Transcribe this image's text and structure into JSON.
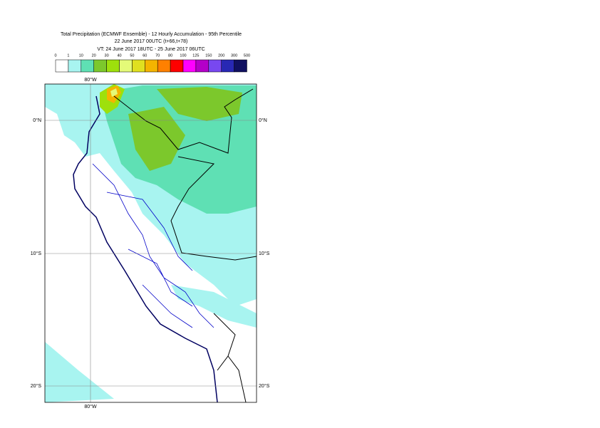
{
  "header": {
    "lines": [
      "Total Precipitation (ECMWF Ensemble) - 12 Hourly Accumulation - 95th Percentile",
      "22 June 2017 00UTC (t+66,t+78)",
      "VT: 24 June 2017 18UTC - 25 June 2017 06UTC"
    ]
  },
  "legend": {
    "thresholds": [
      "0",
      "1",
      "10",
      "20",
      "30",
      "40",
      "50",
      "60",
      "70",
      "80",
      "100",
      "125",
      "150",
      "200",
      "300",
      "500"
    ],
    "colors": [
      "#ffffff",
      "#a8f4f0",
      "#5fe0b4",
      "#7cc82c",
      "#9ee00c",
      "#e4fa78",
      "#e0e020",
      "#f4b400",
      "#ff8000",
      "#ff0000",
      "#ff00ff",
      "#b400c8",
      "#7848f0",
      "#2828b4",
      "#101060"
    ]
  },
  "map": {
    "lon_label": "80°W",
    "lat_labels": [
      "0°N",
      "10°S",
      "20°S"
    ]
  }
}
